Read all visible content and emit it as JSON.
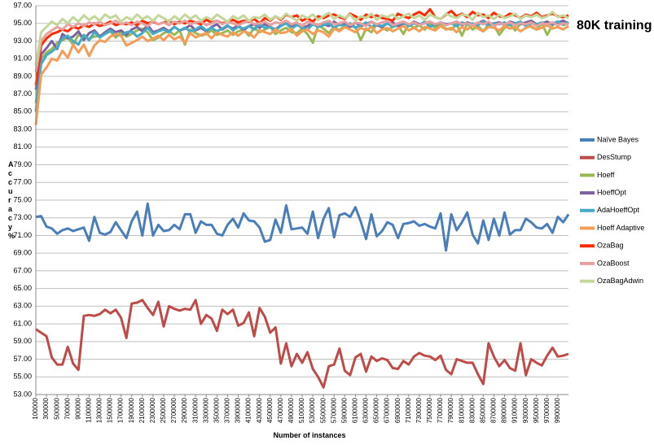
{
  "chart_data": {
    "type": "line",
    "title": "80K training",
    "xlabel": "Number of instances",
    "ylabel": "Accuracy %",
    "ylim": [
      53.0,
      97.0
    ],
    "yticks": [
      "53.00",
      "55.00",
      "57.00",
      "59.00",
      "61.00",
      "63.00",
      "65.00",
      "67.00",
      "69.00",
      "71.00",
      "73.00",
      "75.00",
      "77.00",
      "79.00",
      "81.00",
      "83.00",
      "85.00",
      "87.00",
      "89.00",
      "91.00",
      "93.00",
      "95.00",
      "97.00"
    ],
    "xtick_labels": [
      "100000",
      "300000",
      "500000",
      "700000",
      "900000",
      "1100000",
      "1300000",
      "1500000",
      "1700000",
      "1900000",
      "2100000",
      "2300000",
      "2500000",
      "2700000",
      "2900000",
      "3100000",
      "3300000",
      "3500000",
      "3700000",
      "3900000",
      "4100000",
      "4300000",
      "4500000",
      "4700000",
      "4900000",
      "5100000",
      "5300000",
      "5500000",
      "5700000",
      "5900000",
      "6100000",
      "6300000",
      "6500000",
      "6700000",
      "6900000",
      "7100000",
      "7300000",
      "7500000",
      "7700000",
      "7900000",
      "8100000",
      "8300000",
      "8500000",
      "8700000",
      "8900000",
      "9100000",
      "9300000",
      "9500000",
      "9700000",
      "9900000"
    ],
    "x_start": 100000,
    "x_step": 100000,
    "grid": true,
    "legend_position": "right",
    "series": [
      {
        "name": "Naïve Bayes",
        "color": "#4a7ebb",
        "values": [
          73.1,
          73.2,
          72.0,
          71.8,
          71.2,
          71.6,
          71.8,
          71.5,
          71.7,
          71.9,
          70.4,
          73.1,
          71.3,
          71.1,
          71.4,
          72.5,
          71.6,
          70.7,
          72.6,
          73.7,
          71.0,
          74.6,
          71.0,
          72.2,
          71.5,
          71.6,
          72.2,
          71.7,
          73.4,
          73.4,
          71.3,
          72.6,
          72.2,
          72.2,
          71.2,
          71.0,
          72.2,
          72.9,
          71.9,
          73.5,
          72.7,
          72.6,
          71.9,
          70.3,
          70.5,
          72.8,
          71.3,
          74.4,
          71.7,
          71.8,
          71.9,
          71.2,
          73.7,
          70.7,
          72.9,
          74.1,
          70.8,
          73.3,
          73.5,
          73.1,
          74.2,
          72.6,
          70.6,
          73.4,
          70.9,
          71.5,
          72.5,
          72.2,
          70.7,
          72.3,
          72.4,
          72.6,
          72.1,
          72.3,
          72.0,
          71.8,
          73.5,
          69.3,
          73.4,
          71.6,
          72.5,
          73.6,
          71.1,
          70.1,
          72.7,
          70.5,
          72.9,
          71.0,
          73.6,
          71.1,
          71.6,
          71.6,
          72.9,
          72.5,
          71.9,
          71.8,
          72.3,
          71.3,
          73.1,
          72.5,
          73.4
        ]
      },
      {
        "name": "DesStump",
        "color": "#be4b48",
        "values": [
          60.4,
          60.0,
          59.6,
          57.2,
          56.4,
          56.4,
          58.4,
          56.5,
          55.8,
          61.9,
          62.0,
          61.9,
          62.1,
          62.6,
          62.2,
          62.6,
          61.7,
          59.4,
          63.3,
          63.4,
          63.7,
          62.8,
          62.0,
          63.5,
          60.7,
          63.0,
          62.7,
          62.5,
          62.7,
          62.6,
          63.7,
          61.0,
          62.0,
          61.6,
          60.2,
          62.6,
          62.1,
          62.6,
          60.8,
          61.1,
          62.3,
          59.6,
          62.8,
          61.8,
          60.0,
          60.6,
          56.5,
          58.8,
          56.2,
          57.6,
          56.6,
          57.8,
          55.9,
          55.0,
          53.8,
          56.2,
          56.4,
          58.2,
          55.7,
          55.2,
          57.2,
          57.6,
          55.6,
          57.3,
          56.8,
          57.1,
          56.9,
          56.0,
          55.9,
          56.8,
          56.4,
          57.3,
          57.7,
          57.4,
          57.3,
          56.9,
          57.4,
          55.8,
          55.3,
          57.0,
          56.8,
          56.6,
          56.6,
          55.3,
          54.2,
          58.8,
          57.3,
          56.2,
          56.9,
          56.0,
          55.7,
          58.8,
          55.2,
          57.0,
          56.6,
          56.3,
          57.4,
          58.3,
          57.3,
          57.4,
          57.6
        ]
      },
      {
        "name": "Hoeff",
        "color": "#98b954",
        "values": [
          86.0,
          91.0,
          91.7,
          92.1,
          92.8,
          93.1,
          93.4,
          92.6,
          93.7,
          93.4,
          93.3,
          93.5,
          93.6,
          93.8,
          94.1,
          93.4,
          94.0,
          93.5,
          93.8,
          94.2,
          94.4,
          94.0,
          93.1,
          93.4,
          93.9,
          94.1,
          93.7,
          94.2,
          92.6,
          94.3,
          93.9,
          93.6,
          93.8,
          94.2,
          93.7,
          93.9,
          94.2,
          93.7,
          94.1,
          94.3,
          93.6,
          94.5,
          94.0,
          94.3,
          94.6,
          93.8,
          94.2,
          94.5,
          94.0,
          93.9,
          94.4,
          93.8,
          92.8,
          94.8,
          94.4,
          93.9,
          94.6,
          94.2,
          94.8,
          94.7,
          94.6,
          93.1,
          94.4,
          94.0,
          94.9,
          94.5,
          94.2,
          94.6,
          94.8,
          93.8,
          94.9,
          94.5,
          94.8,
          94.3,
          94.9,
          94.5,
          94.8,
          94.4,
          94.3,
          94.9,
          93.6,
          95.0,
          94.3,
          94.7,
          94.1,
          94.9,
          94.8,
          93.7,
          94.5,
          94.9,
          94.2,
          95.0,
          94.8,
          94.6,
          94.3,
          95.0,
          93.7,
          94.8,
          95.2,
          94.8,
          95.0
        ]
      },
      {
        "name": "HoeffOpt",
        "color": "#7d60a0",
        "values": [
          87.5,
          91.5,
          92.2,
          93.0,
          92.1,
          93.8,
          93.3,
          93.5,
          94.1,
          93.1,
          93.9,
          94.2,
          93.5,
          94.0,
          94.4,
          94.0,
          94.2,
          93.7,
          94.3,
          94.6,
          94.1,
          94.8,
          94.0,
          94.2,
          94.5,
          94.1,
          94.6,
          94.2,
          94.4,
          94.8,
          94.2,
          94.5,
          94.1,
          94.6,
          94.9,
          94.3,
          94.7,
          94.4,
          94.8,
          94.2,
          94.7,
          94.9,
          94.5,
          94.9,
          94.6,
          94.3,
          94.8,
          95.0,
          94.6,
          94.9,
          94.5,
          94.7,
          95.1,
          94.6,
          94.9,
          94.7,
          95.2,
          94.8,
          95.0,
          94.6,
          95.1,
          94.7,
          94.9,
          95.2,
          94.8,
          94.6,
          95.0,
          95.1,
          94.7,
          95.0,
          94.8,
          95.2,
          94.9,
          95.0,
          95.2,
          94.8,
          95.1,
          94.9,
          95.0,
          95.2,
          94.8,
          95.1,
          94.9,
          95.0,
          95.3,
          94.9,
          95.0,
          95.1,
          94.8,
          95.2,
          95.0,
          94.9,
          95.1,
          95.3,
          94.9,
          95.0,
          95.2,
          94.9,
          95.1,
          95.3,
          95.0
        ]
      },
      {
        "name": "AdaHoeffOpt",
        "color": "#46aac5",
        "values": [
          85.0,
          90.4,
          91.4,
          91.8,
          92.3,
          93.3,
          93.6,
          93.0,
          92.6,
          93.7,
          93.1,
          94.0,
          93.4,
          93.8,
          94.2,
          93.7,
          93.6,
          94.0,
          94.1,
          93.5,
          93.9,
          94.5,
          93.8,
          94.1,
          94.3,
          94.0,
          94.6,
          94.2,
          94.5,
          94.1,
          94.3,
          94.7,
          94.2,
          94.5,
          94.1,
          94.4,
          94.8,
          94.2,
          94.6,
          94.4,
          94.7,
          94.3,
          94.9,
          94.5,
          94.6,
          94.2,
          94.7,
          95.0,
          94.4,
          94.8,
          94.6,
          94.3,
          94.9,
          94.6,
          94.8,
          95.0,
          94.5,
          94.9,
          94.7,
          95.0,
          94.5,
          94.8,
          95.1,
          94.6,
          94.9,
          94.7,
          95.0,
          94.6,
          94.9,
          95.1,
          94.7,
          95.0,
          94.8,
          95.2,
          94.6,
          94.9,
          95.1,
          94.8,
          95.0,
          94.7,
          95.1,
          94.9,
          95.0,
          94.8,
          95.2,
          94.7,
          95.0,
          94.9,
          95.1,
          94.8,
          95.0,
          95.2,
          94.7,
          95.0,
          94.9,
          95.1,
          94.8,
          95.0,
          95.2,
          94.9,
          95.1
        ]
      },
      {
        "name": "Hoeff Adaptive",
        "color": "#f59d56",
        "values": [
          83.5,
          89.2,
          90.0,
          91.0,
          90.8,
          91.9,
          91.1,
          92.6,
          91.7,
          92.6,
          91.3,
          92.5,
          93.1,
          92.9,
          93.5,
          93.8,
          93.6,
          92.5,
          92.8,
          93.1,
          93.5,
          93.0,
          93.3,
          93.6,
          93.1,
          93.7,
          93.2,
          93.5,
          92.8,
          93.9,
          93.4,
          93.7,
          93.9,
          93.3,
          94.0,
          93.7,
          93.5,
          94.0,
          93.6,
          94.1,
          93.9,
          93.4,
          94.2,
          94.0,
          93.8,
          94.3,
          93.9,
          94.0,
          94.4,
          93.6,
          94.1,
          94.3,
          93.8,
          94.2,
          94.0,
          93.5,
          94.4,
          94.1,
          94.6,
          94.3,
          94.0,
          94.5,
          94.2,
          94.6,
          93.9,
          94.3,
          94.5,
          94.1,
          94.4,
          94.7,
          94.2,
          94.5,
          94.1,
          94.6,
          94.4,
          94.2,
          94.7,
          94.3,
          94.5,
          94.0,
          94.6,
          94.3,
          94.8,
          94.4,
          94.1,
          94.6,
          94.5,
          94.2,
          94.7,
          94.4,
          94.6,
          94.1,
          94.5,
          94.7,
          94.3,
          94.5,
          94.8,
          94.4,
          94.6,
          94.3,
          94.7
        ]
      },
      {
        "name": "OzaBag",
        "color": "#ff2a00",
        "values": [
          88.0,
          92.5,
          93.3,
          93.8,
          94.0,
          94.3,
          94.1,
          94.6,
          94.4,
          94.8,
          94.6,
          95.0,
          94.7,
          94.9,
          95.2,
          94.8,
          95.0,
          94.9,
          95.1,
          94.8,
          95.3,
          95.0,
          95.2,
          94.9,
          95.1,
          95.3,
          94.9,
          95.2,
          95.0,
          95.3,
          95.1,
          94.9,
          95.4,
          95.1,
          95.3,
          95.0,
          95.2,
          95.4,
          95.1,
          95.3,
          95.2,
          95.5,
          95.0,
          95.6,
          95.3,
          95.8,
          95.4,
          96.0,
          95.7,
          95.9,
          95.3,
          95.6,
          95.2,
          95.8,
          95.6,
          95.9,
          96.0,
          95.7,
          95.5,
          96.1,
          95.8,
          95.4,
          96.0,
          95.7,
          95.9,
          95.6,
          95.5,
          95.3,
          96.1,
          95.8,
          95.6,
          96.0,
          96.3,
          95.9,
          96.6,
          95.7,
          95.5,
          96.0,
          96.4,
          95.8,
          96.1,
          95.7,
          96.3,
          95.9,
          96.0,
          95.6,
          96.2,
          95.8,
          95.7,
          96.1,
          95.9,
          95.6,
          96.0,
          95.8,
          96.2,
          95.7,
          95.9,
          96.1,
          95.8,
          95.7,
          95.9
        ]
      },
      {
        "name": "OzaBoost",
        "color": "#e6a0a0",
        "values": [
          89.5,
          93.0,
          93.8,
          94.2,
          94.6,
          94.3,
          94.9,
          94.6,
          95.0,
          94.7,
          95.1,
          94.9,
          95.2,
          94.8,
          95.0,
          95.3,
          94.9,
          95.1,
          94.8,
          95.2,
          95.0,
          94.7,
          95.3,
          94.9,
          95.1,
          94.8,
          95.2,
          95.0,
          95.3,
          94.9,
          95.1,
          95.2,
          94.8,
          95.0,
          95.3,
          94.9,
          95.2,
          95.0,
          94.8,
          95.1,
          95.3,
          94.9,
          95.0,
          95.2,
          94.8,
          95.1,
          95.0,
          95.3,
          94.9,
          95.1,
          94.7,
          95.2,
          95.0,
          94.8,
          95.1,
          95.3,
          94.9,
          95.0,
          95.2,
          94.8,
          95.1,
          95.0,
          94.7,
          95.2,
          94.9,
          95.1,
          95.3,
          94.8,
          95.0,
          95.2,
          94.9,
          95.1,
          94.8,
          95.0,
          95.2,
          94.9,
          95.1,
          94.8,
          95.0,
          95.2,
          94.9,
          95.0,
          94.8,
          95.1,
          94.9,
          95.2,
          94.7,
          95.0,
          94.9,
          95.1,
          94.8,
          95.0,
          94.9,
          95.1,
          94.7,
          95.0,
          94.9,
          95.1,
          94.8,
          95.0,
          94.9
        ]
      },
      {
        "name": "OzaBagAdwin",
        "color": "#c4d79b",
        "values": [
          90.2,
          94.0,
          94.6,
          95.2,
          94.8,
          95.5,
          95.0,
          95.7,
          95.2,
          95.9,
          95.4,
          95.8,
          95.3,
          96.0,
          95.6,
          95.9,
          95.2,
          95.7,
          95.4,
          96.0,
          95.5,
          95.8,
          95.3,
          95.9,
          95.6,
          95.2,
          95.8,
          95.4,
          96.0,
          95.5,
          95.9,
          95.3,
          95.7,
          95.4,
          96.0,
          95.6,
          95.2,
          95.8,
          95.5,
          95.9,
          95.3,
          95.7,
          95.6,
          96.0,
          95.4,
          95.8,
          95.5,
          96.1,
          95.7,
          95.3,
          95.9,
          95.6,
          96.0,
          95.4,
          95.8,
          96.2,
          95.5,
          95.9,
          95.6,
          96.0,
          95.3,
          95.8,
          95.6,
          96.1,
          95.4,
          95.9,
          95.7,
          96.0,
          95.5,
          95.8,
          96.1,
          95.6,
          95.9,
          95.4,
          96.0,
          95.7,
          95.5,
          96.1,
          95.8,
          95.6,
          96.0,
          95.9,
          95.4,
          96.2,
          95.7,
          95.9,
          95.5,
          96.0,
          95.6,
          95.8,
          96.1,
          95.5,
          95.9,
          95.7,
          96.0,
          95.6,
          95.8,
          96.3,
          95.7,
          95.9,
          95.6
        ]
      }
    ]
  }
}
